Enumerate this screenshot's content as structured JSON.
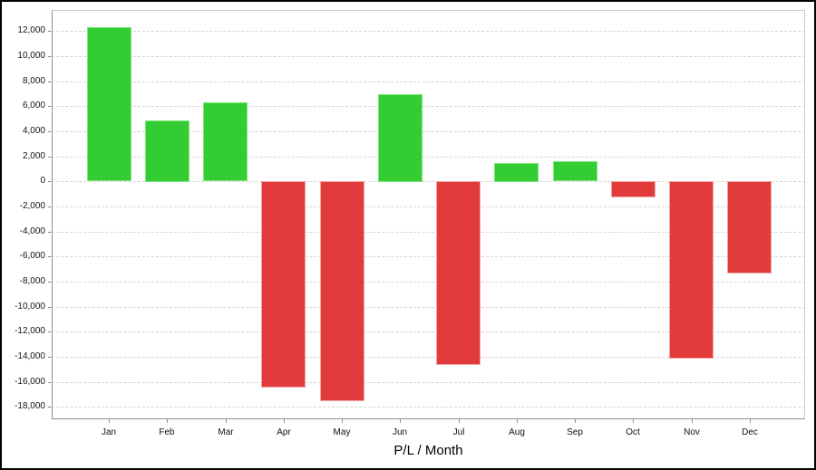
{
  "chart_data": {
    "type": "bar",
    "title": "P/L / Month",
    "xlabel": "P/L / Month",
    "ylabel": "",
    "legend": "none",
    "grid": "horizontal-dashed",
    "categories": [
      "Jan",
      "Feb",
      "Mar",
      "Apr",
      "May",
      "Jun",
      "Jul",
      "Aug",
      "Sep",
      "Oct",
      "Nov",
      "Dec"
    ],
    "values": [
      12300,
      4900,
      6300,
      -16500,
      -17600,
      7000,
      -14700,
      1500,
      1600,
      -1300,
      -14200,
      -7400
    ],
    "series_name": "P/L",
    "positive_color": "#33cc33",
    "negative_color": "#e23b3b",
    "positive_border_color": "#7ce87c",
    "negative_border_color": "#f2a5a5",
    "ylim": [
      -19000,
      13700
    ],
    "yticks": [
      -18000,
      -16000,
      -14000,
      -12000,
      -10000,
      -8000,
      -6000,
      -4000,
      -2000,
      0,
      2000,
      4000,
      6000,
      8000,
      10000,
      12000
    ],
    "ytick_labels": [
      "-18,000",
      "-16,000",
      "-14,000",
      "-12,000",
      "-10,000",
      "-8,000",
      "-6,000",
      "-4,000",
      "-2,000",
      "0",
      "2,000",
      "4,000",
      "6,000",
      "8,000",
      "10,000",
      "12,000"
    ],
    "background_color": "#ffffff",
    "frame_border_color": "#000000",
    "gridline_color": "#d5d5d5",
    "axis_line_color": "#8c8c8c"
  }
}
